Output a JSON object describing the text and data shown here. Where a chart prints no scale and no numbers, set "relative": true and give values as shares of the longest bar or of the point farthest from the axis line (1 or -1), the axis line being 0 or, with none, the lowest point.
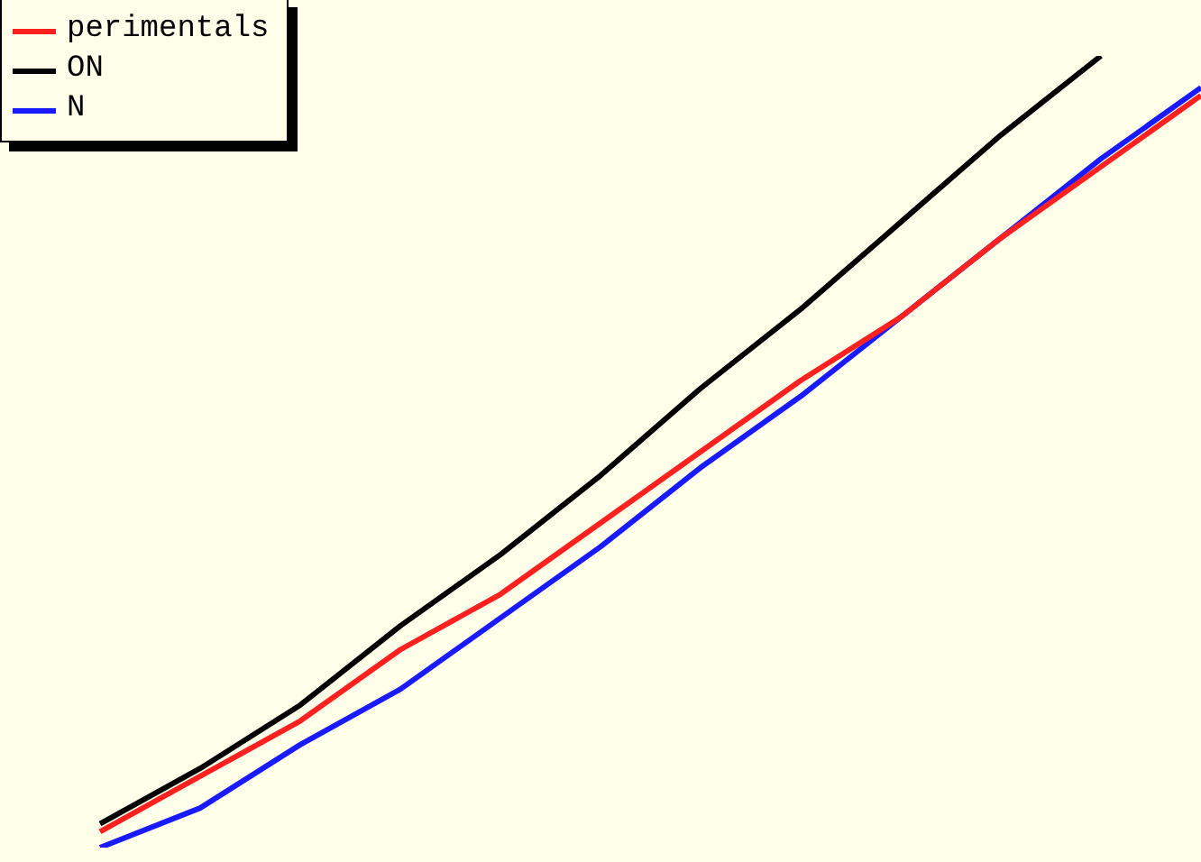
{
  "chart_data": {
    "type": "line",
    "relative": true,
    "legend": "top left",
    "marker": "none",
    "line_style": "solid",
    "grid": false,
    "categories": [
      null,
      null,
      null,
      null,
      null,
      null,
      null,
      null,
      null,
      null,
      null,
      null,
      null
    ],
    "series": [
      {
        "name": "perimentals",
        "color": "#ff2020",
        "values": [
          null,
          0.02,
          0.09,
          0.16,
          0.25,
          0.32,
          0.41,
          0.5,
          0.59,
          0.67,
          0.77,
          0.86,
          0.95
        ]
      },
      {
        "name": "ON",
        "color": "#000000",
        "values": [
          null,
          0.03,
          0.1,
          0.18,
          0.28,
          0.37,
          0.47,
          0.58,
          0.68,
          0.79,
          0.9,
          1,
          null
        ]
      },
      {
        "name": "N",
        "color": "#1a1aff",
        "values": [
          null,
          0,
          0.05,
          0.13,
          0.2,
          0.29,
          0.38,
          0.48,
          0.57,
          0.67,
          0.77,
          0.87,
          0.96
        ]
      }
    ]
  }
}
